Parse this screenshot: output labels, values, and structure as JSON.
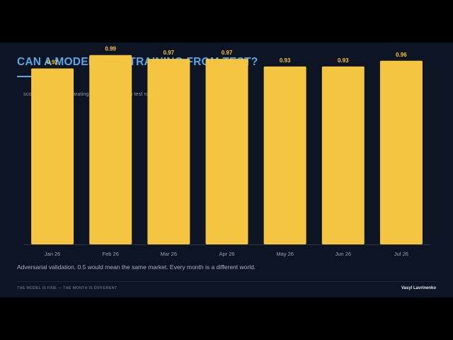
{
  "slide": {
    "title": "CAN A MODEL TELL TRAINING FROM TEST?",
    "subtitle": "score of a model separating training rows from test rows",
    "caption": "Adversarial validation. 0.5 would mean the same market. Every month is a different world.",
    "footer_left": "THE MODEL IS FINE — THE MONTH IS DIFFERENT",
    "footer_right": "Vasyl Lavrinenko"
  },
  "colors": {
    "background": "#0d1424",
    "title": "#5aa9e6",
    "bar": "#f5c542",
    "data_label": "#f5c542",
    "tick_label": "#9aa3b3"
  },
  "chart_data": {
    "type": "bar",
    "categories": [
      "Jan 26",
      "Feb 26",
      "Mar 26",
      "Apr 26",
      "May 26",
      "Jun 26",
      "Jul 26"
    ],
    "values": [
      0.92,
      0.99,
      0.97,
      0.97,
      0.93,
      0.93,
      0.96
    ],
    "value_labels": [
      "0.92",
      "0.99",
      "0.97",
      "0.97",
      "0.93",
      "0.93",
      "0.96"
    ],
    "ylim": [
      0,
      1.0
    ],
    "grid": false,
    "legend": "none"
  }
}
